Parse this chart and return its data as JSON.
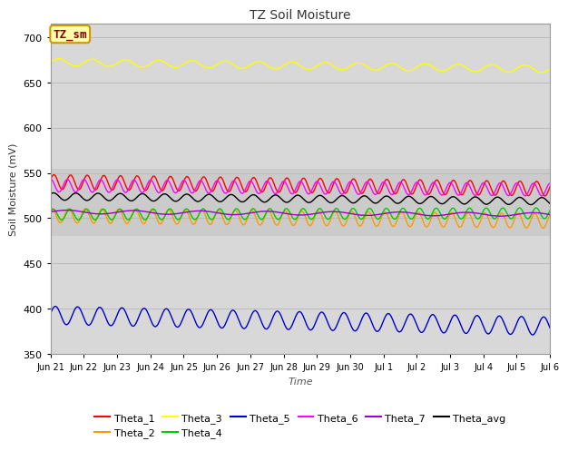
{
  "title": "TZ Soil Moisture",
  "ylabel": "Soil Moisture (mV)",
  "xlabel": "Time",
  "box_label": "TZ_sm",
  "ylim": [
    350,
    715
  ],
  "yticks": [
    350,
    400,
    450,
    500,
    550,
    600,
    650,
    700
  ],
  "x_tick_labels": [
    "Jun 21",
    "Jun 22",
    "Jun 23",
    "Jun 24",
    "Jun 25",
    "Jun 26",
    "Jun 27",
    "Jun 28",
    "Jun 29",
    "Jun 30",
    "Jul 1",
    "Jul 2",
    "Jul 3",
    "Jul 4",
    "Jul 5",
    "Jul 6"
  ],
  "n_days": 15,
  "n_points": 720,
  "series": {
    "Theta_1": {
      "color": "#ff0000",
      "base": 540,
      "amp": 8,
      "trend": -0.5,
      "freq_per_day": 2.0,
      "phase": 0.3
    },
    "Theta_2": {
      "color": "#ff9900",
      "base": 503,
      "amp": 8,
      "trend": -0.4,
      "freq_per_day": 2.0,
      "phase": 1.0
    },
    "Theta_3": {
      "color": "#ffff00",
      "base": 672,
      "amp": 4,
      "trend": -0.5,
      "freq_per_day": 1.0,
      "phase": 0.0
    },
    "Theta_4": {
      "color": "#00cc00",
      "base": 504,
      "amp": 6,
      "trend": 0.1,
      "freq_per_day": 2.0,
      "phase": 0.5
    },
    "Theta_5": {
      "color": "#0000cc",
      "base": 393,
      "amp": 10,
      "trend": -0.8,
      "freq_per_day": 1.5,
      "phase": 0.2
    },
    "Theta_6": {
      "color": "#ff00ff",
      "base": 536,
      "amp": 7,
      "trend": -0.3,
      "freq_per_day": 2.0,
      "phase": 1.5
    },
    "Theta_7": {
      "color": "#9900cc",
      "base": 507,
      "amp": 2,
      "trend": -0.2,
      "freq_per_day": 0.5,
      "phase": 0.0
    },
    "Theta_avg": {
      "color": "#000000",
      "base": 524,
      "amp": 4,
      "trend": -0.35,
      "freq_per_day": 1.5,
      "phase": 0.7
    }
  },
  "bg_color": "#d8d8d8",
  "bg_band_color": "#c8c8c8",
  "legend_row1": [
    "Theta_1",
    "Theta_2",
    "Theta_3",
    "Theta_4",
    "Theta_5",
    "Theta_6"
  ],
  "legend_row2": [
    "Theta_7",
    "Theta_avg"
  ]
}
